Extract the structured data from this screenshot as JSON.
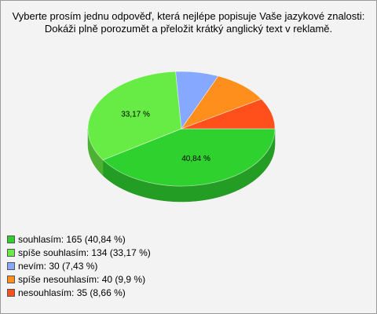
{
  "chart_data": {
    "type": "pie",
    "title": "Vyberte prosím jednu odpověď, která nejlépe popisuje Vaše jazykové znalosti: Dokáži plně porozumět a přeložit krátký anglický text v reklamě.",
    "categories": [
      "souhlasím: 165 (40,84 %)",
      "spíše souhlasím: 134 (33,17 %)",
      "nevím: 30 (7,43 %)",
      "spíše nesouhlasím: 40 (9,9 %)",
      "nesouhlasím: 35 (8,66 %)"
    ],
    "values": [
      40.84,
      33.17,
      7.43,
      9.9,
      8.66
    ],
    "value_labels": [
      "40,84 %",
      "33,17 %",
      null,
      null,
      null
    ],
    "colors": [
      "#2fd12f",
      "#66ec44",
      "#86a8ff",
      "#ff8f1c",
      "#ff4f1a"
    ]
  }
}
